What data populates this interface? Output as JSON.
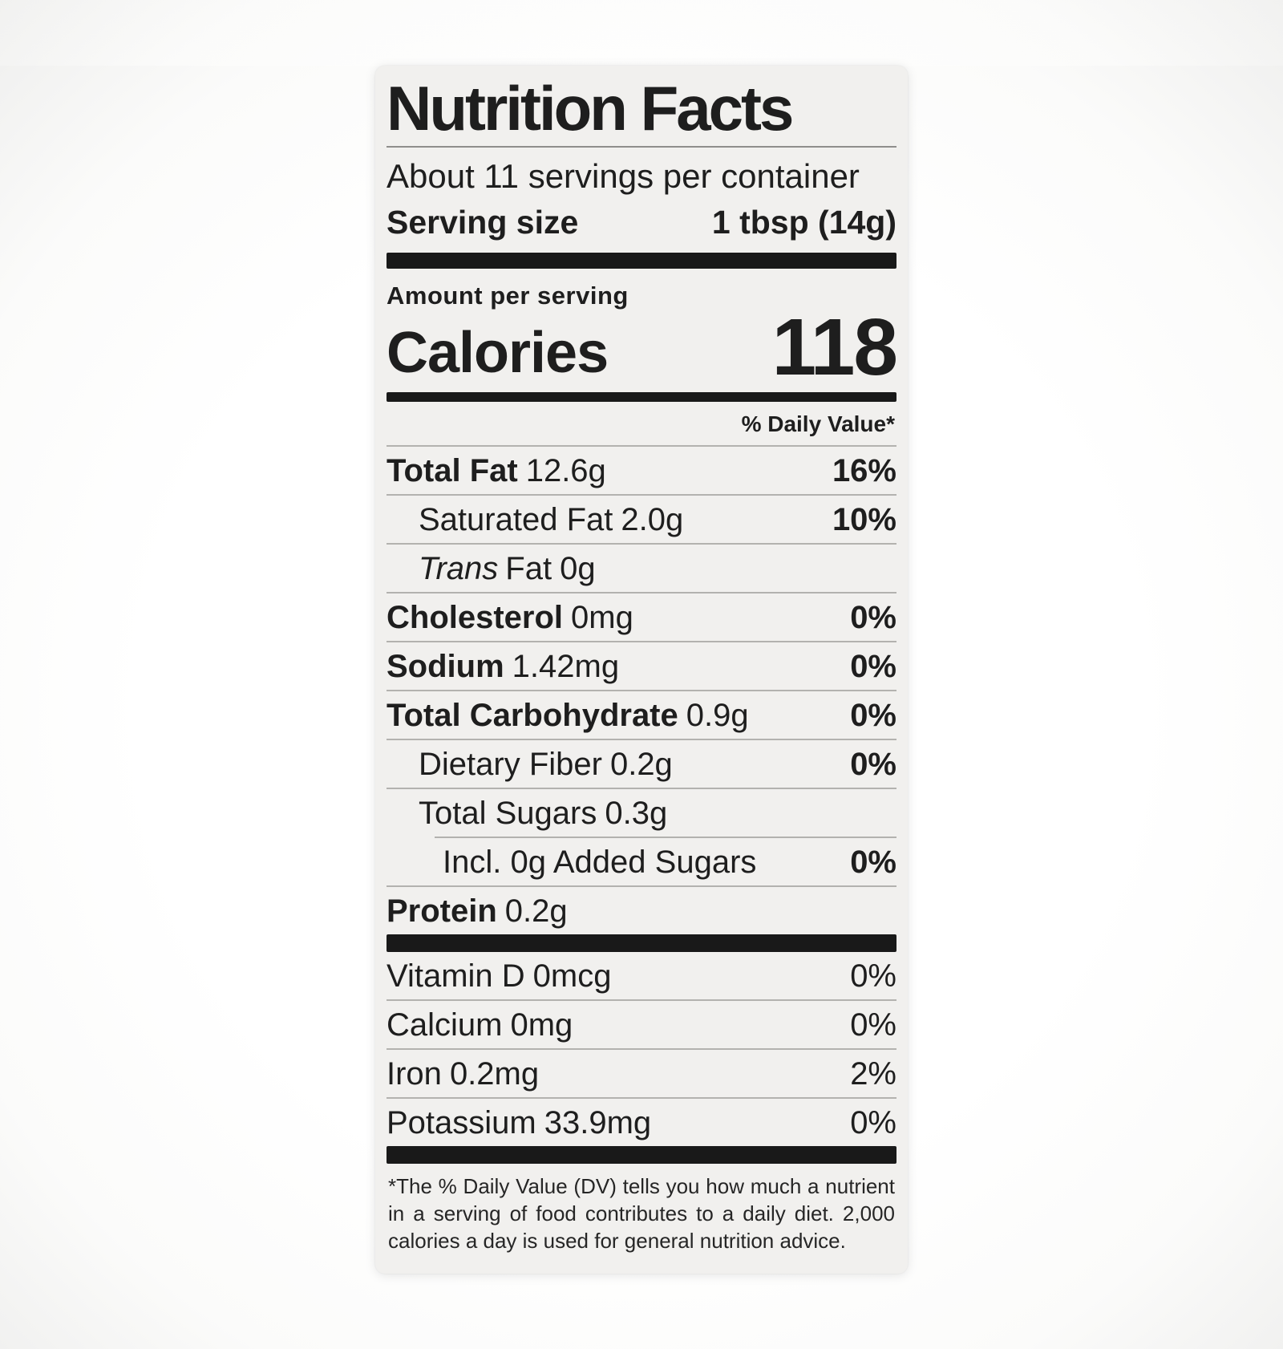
{
  "label": {
    "title": "Nutrition Facts",
    "servings_line": "About 11 servings per container",
    "serving_size": {
      "label": "Serving size",
      "value": "1 tbsp (14g)"
    },
    "amount_per_serving": "Amount per serving",
    "calories": {
      "label": "Calories",
      "value": "118"
    },
    "daily_value_header": "% Daily Value*",
    "nutrients": [
      {
        "name": "Total Fat",
        "amount": "12.6g",
        "dv": "16%",
        "level": 0,
        "bold": true,
        "dv_bold": true,
        "divider_after": "full"
      },
      {
        "name": "Saturated Fat",
        "amount": "2.0g",
        "dv": "10%",
        "level": 1,
        "bold": false,
        "dv_bold": true,
        "divider_after": "full"
      },
      {
        "name_italic": "Trans",
        "name": "Fat",
        "amount": "0g",
        "dv": "",
        "level": 1,
        "bold": false,
        "dv_bold": false,
        "divider_after": "full"
      },
      {
        "name": "Cholesterol",
        "amount": "0mg",
        "dv": "0%",
        "level": 0,
        "bold": true,
        "dv_bold": true,
        "divider_after": "full"
      },
      {
        "name": "Sodium",
        "amount": "1.42mg",
        "dv": "0%",
        "level": 0,
        "bold": true,
        "dv_bold": true,
        "divider_after": "full"
      },
      {
        "name": "Total Carbohydrate",
        "amount": "0.9g",
        "dv": "0%",
        "level": 0,
        "bold": true,
        "dv_bold": true,
        "divider_after": "full"
      },
      {
        "name": "Dietary Fiber",
        "amount": "0.2g",
        "dv": "0%",
        "level": 1,
        "bold": false,
        "dv_bold": true,
        "divider_after": "full"
      },
      {
        "name": "Total Sugars",
        "amount": "0.3g",
        "dv": "",
        "level": 1,
        "bold": false,
        "dv_bold": false,
        "divider_after": "indent"
      },
      {
        "name": "Incl. 0g Added Sugars",
        "amount": "",
        "dv": "0%",
        "level": 2,
        "bold": false,
        "dv_bold": true,
        "divider_after": "full"
      },
      {
        "name": "Protein",
        "amount": "0.2g",
        "dv": "",
        "level": 0,
        "bold": true,
        "dv_bold": false,
        "divider_after": "none"
      }
    ],
    "micronutrients": [
      {
        "name": "Vitamin D",
        "amount": "0mcg",
        "dv": "0%",
        "divider_after": "full"
      },
      {
        "name": "Calcium",
        "amount": "0mg",
        "dv": "0%",
        "divider_after": "full"
      },
      {
        "name": "Iron",
        "amount": "0.2mg",
        "dv": "2%",
        "divider_after": "full"
      },
      {
        "name": "Potassium",
        "amount": "33.9mg",
        "dv": "0%",
        "divider_after": "none"
      }
    ],
    "footnote": "*The % Daily Value (DV) tells you how much a nutrient in a serving of food contributes to a daily diet. 2,000 calories a day is used for general nutrition advice."
  },
  "colors": {
    "card_bg": "#f1f0ee",
    "text": "#1e1e1e",
    "bar": "#191919",
    "divider": "#b3b2af"
  }
}
